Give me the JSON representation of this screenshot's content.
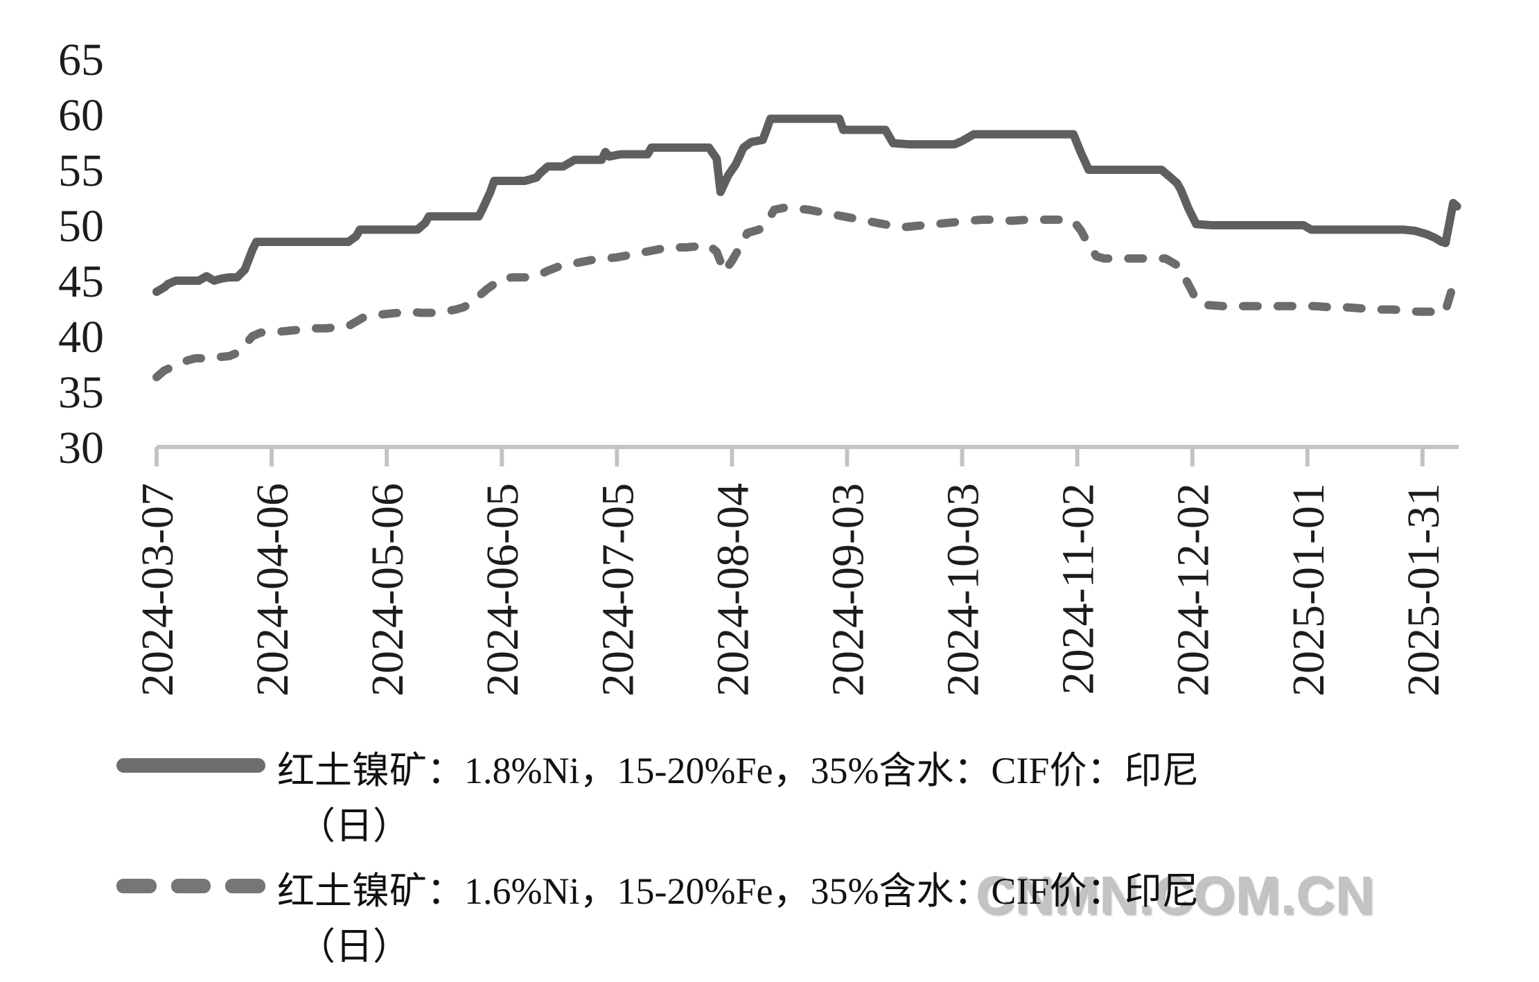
{
  "chart_data": {
    "type": "line",
    "title": "",
    "xlabel": "",
    "ylabel": "",
    "ylim": [
      30,
      65
    ],
    "grid": false,
    "legend_position": "bottom",
    "y_axis": {
      "ticks": [
        65,
        60,
        55,
        50,
        45,
        40,
        35,
        30
      ]
    },
    "x_axis": {
      "categories": [
        "2024-03-07",
        "2024-04-06",
        "2024-05-06",
        "2024-06-05",
        "2024-07-05",
        "2024-08-04",
        "2024-09-03",
        "2024-10-03",
        "2024-11-02",
        "2024-12-02",
        "2025-01-01",
        "2025-01-31"
      ],
      "tick_day_offsets": [
        0,
        30,
        60,
        90,
        120,
        150,
        180,
        210,
        240,
        270,
        300,
        330
      ]
    },
    "series": [
      {
        "name": "红土镍矿：1.8%Ni，15-20%Fe，35%含水：CIF价：印尼（日）",
        "style": "solid",
        "color": "#5f5f5f",
        "points": [
          [
            0,
            44
          ],
          [
            2,
            44.4
          ],
          [
            3,
            44.7
          ],
          [
            5,
            45
          ],
          [
            8,
            45
          ],
          [
            11,
            45
          ],
          [
            13,
            45.4
          ],
          [
            15,
            45.0
          ],
          [
            17,
            45.2
          ],
          [
            19,
            45.3
          ],
          [
            21,
            45.3
          ],
          [
            23,
            46
          ],
          [
            25,
            47.8
          ],
          [
            26,
            48.5
          ],
          [
            30,
            48.5
          ],
          [
            35,
            48.5
          ],
          [
            40,
            48.5
          ],
          [
            45,
            48.5
          ],
          [
            50,
            48.5
          ],
          [
            52,
            49
          ],
          [
            53,
            49.6
          ],
          [
            58,
            49.6
          ],
          [
            63,
            49.6
          ],
          [
            68,
            49.6
          ],
          [
            70,
            50.2
          ],
          [
            71,
            50.8
          ],
          [
            76,
            50.8
          ],
          [
            80,
            50.8
          ],
          [
            84,
            50.8
          ],
          [
            85,
            51.5
          ],
          [
            87,
            53
          ],
          [
            88,
            54
          ],
          [
            92,
            54
          ],
          [
            96,
            54
          ],
          [
            99,
            54.3
          ],
          [
            100,
            54.7
          ],
          [
            102,
            55.3
          ],
          [
            106,
            55.3
          ],
          [
            109,
            55.9
          ],
          [
            113,
            55.9
          ],
          [
            116,
            55.9
          ],
          [
            117,
            56.6
          ],
          [
            118,
            56.2
          ],
          [
            121,
            56.4
          ],
          [
            125,
            56.4
          ],
          [
            128,
            56.4
          ],
          [
            129,
            57
          ],
          [
            133,
            57
          ],
          [
            137,
            57
          ],
          [
            141,
            57
          ],
          [
            144,
            57
          ],
          [
            146,
            56
          ],
          [
            147,
            53
          ],
          [
            149,
            54.5
          ],
          [
            151,
            55.5
          ],
          [
            153,
            57
          ],
          [
            155,
            57.5
          ],
          [
            158,
            57.7
          ],
          [
            159,
            58.6
          ],
          [
            160,
            59.6
          ],
          [
            164,
            59.6
          ],
          [
            168,
            59.6
          ],
          [
            172,
            59.6
          ],
          [
            176,
            59.6
          ],
          [
            178,
            59.6
          ],
          [
            179,
            58.6
          ],
          [
            183,
            58.6
          ],
          [
            187,
            58.6
          ],
          [
            190,
            58.6
          ],
          [
            192,
            57.4
          ],
          [
            196,
            57.3
          ],
          [
            200,
            57.3
          ],
          [
            204,
            57.3
          ],
          [
            208,
            57.3
          ],
          [
            210,
            57.6
          ],
          [
            213,
            58.2
          ],
          [
            217,
            58.2
          ],
          [
            221,
            58.2
          ],
          [
            225,
            58.2
          ],
          [
            229,
            58.2
          ],
          [
            233,
            58.2
          ],
          [
            237,
            58.2
          ],
          [
            239,
            58.2
          ],
          [
            241,
            56.5
          ],
          [
            243,
            55
          ],
          [
            247,
            55
          ],
          [
            251,
            55
          ],
          [
            255,
            55
          ],
          [
            259,
            55
          ],
          [
            262,
            55
          ],
          [
            264,
            54.4
          ],
          [
            266,
            53.8
          ],
          [
            267,
            53.2
          ],
          [
            269,
            51.5
          ],
          [
            271,
            50.1
          ],
          [
            275,
            50
          ],
          [
            279,
            50
          ],
          [
            283,
            50
          ],
          [
            287,
            50
          ],
          [
            291,
            50
          ],
          [
            295,
            50
          ],
          [
            299,
            50
          ],
          [
            301,
            49.6
          ],
          [
            305,
            49.6
          ],
          [
            309,
            49.6
          ],
          [
            313,
            49.6
          ],
          [
            317,
            49.6
          ],
          [
            321,
            49.6
          ],
          [
            325,
            49.6
          ],
          [
            328,
            49.5
          ],
          [
            331,
            49.2
          ],
          [
            333,
            48.9
          ],
          [
            335,
            48.5
          ],
          [
            336,
            48.4
          ],
          [
            338,
            52
          ],
          [
            339,
            51.7
          ]
        ]
      },
      {
        "name": "红土镍矿：1.6%Ni，15-20%Fe，35%含水：CIF价：印尼（日）",
        "style": "dashed",
        "color": "#6c6c6c",
        "points": [
          [
            0,
            36.3
          ],
          [
            2,
            36.9
          ],
          [
            4,
            37.2
          ],
          [
            6,
            37.5
          ],
          [
            8,
            37.8
          ],
          [
            10,
            38
          ],
          [
            13,
            38
          ],
          [
            16,
            38.1
          ],
          [
            19,
            38.2
          ],
          [
            21,
            38.5
          ],
          [
            23,
            39.2
          ],
          [
            25,
            40
          ],
          [
            27,
            40.3
          ],
          [
            29,
            40.4
          ],
          [
            32,
            40.4
          ],
          [
            35,
            40.5
          ],
          [
            38,
            40.6
          ],
          [
            41,
            40.7
          ],
          [
            44,
            40.7
          ],
          [
            47,
            40.8
          ],
          [
            50,
            40.9
          ],
          [
            52,
            41.3
          ],
          [
            54,
            41.7
          ],
          [
            57,
            41.9
          ],
          [
            60,
            42
          ],
          [
            63,
            42.1
          ],
          [
            66,
            42.2
          ],
          [
            69,
            42.1
          ],
          [
            72,
            42.1
          ],
          [
            75,
            42.2
          ],
          [
            78,
            42.4
          ],
          [
            80,
            42.6
          ],
          [
            82,
            43
          ],
          [
            84,
            43.6
          ],
          [
            86,
            44.2
          ],
          [
            88,
            44.7
          ],
          [
            90,
            45.2
          ],
          [
            93,
            45.3
          ],
          [
            96,
            45.3
          ],
          [
            99,
            45.4
          ],
          [
            102,
            45.9
          ],
          [
            105,
            46.3
          ],
          [
            108,
            46.5
          ],
          [
            111,
            46.7
          ],
          [
            114,
            46.9
          ],
          [
            117,
            47
          ],
          [
            120,
            47.1
          ],
          [
            123,
            47.3
          ],
          [
            126,
            47.5
          ],
          [
            129,
            47.7
          ],
          [
            132,
            47.9
          ],
          [
            135,
            48
          ],
          [
            138,
            48
          ],
          [
            141,
            48.1
          ],
          [
            144,
            48.2
          ],
          [
            146,
            47.6
          ],
          [
            148,
            45.8
          ],
          [
            150,
            46.8
          ],
          [
            152,
            48
          ],
          [
            154,
            49.3
          ],
          [
            157,
            49.6
          ],
          [
            159,
            50.2
          ],
          [
            161,
            51.4
          ],
          [
            164,
            51.6
          ],
          [
            167,
            51.5
          ],
          [
            170,
            51.4
          ],
          [
            173,
            51.2
          ],
          [
            176,
            51
          ],
          [
            179,
            50.8
          ],
          [
            182,
            50.6
          ],
          [
            185,
            50.4
          ],
          [
            188,
            50.2
          ],
          [
            191,
            50
          ],
          [
            194,
            49.8
          ],
          [
            197,
            49.9
          ],
          [
            200,
            50
          ],
          [
            203,
            50.1
          ],
          [
            206,
            50.2
          ],
          [
            209,
            50.3
          ],
          [
            212,
            50.4
          ],
          [
            215,
            50.5
          ],
          [
            219,
            50.5
          ],
          [
            223,
            50.4
          ],
          [
            227,
            50.5
          ],
          [
            231,
            50.5
          ],
          [
            235,
            50.5
          ],
          [
            239,
            50.4
          ],
          [
            241,
            49.5
          ],
          [
            243,
            48.2
          ],
          [
            245,
            47.2
          ],
          [
            247,
            47
          ],
          [
            251,
            47
          ],
          [
            255,
            47
          ],
          [
            259,
            47
          ],
          [
            263,
            47
          ],
          [
            266,
            46.4
          ],
          [
            268,
            45.3
          ],
          [
            270,
            44
          ],
          [
            271,
            43.2
          ],
          [
            274,
            42.8
          ],
          [
            278,
            42.7
          ],
          [
            282,
            42.7
          ],
          [
            286,
            42.7
          ],
          [
            290,
            42.7
          ],
          [
            294,
            42.7
          ],
          [
            298,
            42.7
          ],
          [
            302,
            42.7
          ],
          [
            306,
            42.6
          ],
          [
            310,
            42.6
          ],
          [
            314,
            42.5
          ],
          [
            318,
            42.4
          ],
          [
            322,
            42.4
          ],
          [
            326,
            42.3
          ],
          [
            329,
            42.2
          ],
          [
            332,
            42.2
          ],
          [
            335,
            42.1
          ],
          [
            336,
            42.3
          ],
          [
            338,
            44.6
          ]
        ]
      }
    ]
  },
  "legend": {
    "entries": [
      {
        "swatch": "solid",
        "line1": "红土镍矿：1.8%Ni，15-20%Fe，35%含水：CIF价：印尼",
        "line2": "（日）"
      },
      {
        "swatch": "dashed",
        "line1": "红土镍矿：1.6%Ni，15-20%Fe，35%含水：CIF价：印尼",
        "line2": "（日）"
      }
    ]
  },
  "watermark": {
    "text": "CNMN.COM.CN"
  },
  "colors": {
    "solid_series": "#5f5f5f",
    "dashed_series": "#6c6c6c",
    "axis": "#c3c3c3",
    "label": "#1c1c1c",
    "watermark": "#c3c3c3"
  }
}
